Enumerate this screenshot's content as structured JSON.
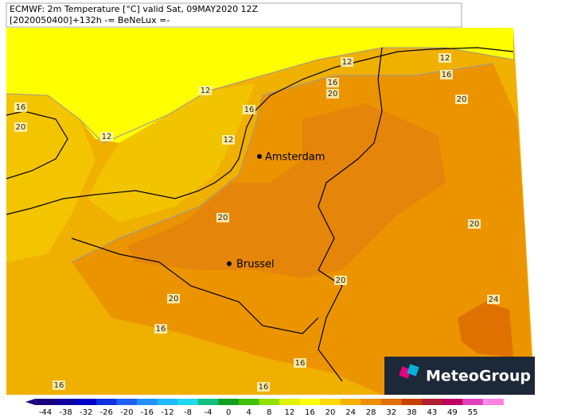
{
  "header": {
    "line1": "ECMWF: 2m Temperature [°C] valid Sat, 09MAY2020 12Z",
    "line2": "[2020050400]+132h -= BeNeLux =-"
  },
  "cities": [
    "Amsterdam",
    "Brussel"
  ],
  "contour_labels": [
    12,
    12,
    16,
    16,
    20,
    12,
    16,
    16,
    20,
    20,
    12,
    12,
    20,
    20,
    20,
    20,
    24,
    16,
    16,
    16,
    16
  ],
  "colorbar": {
    "ticks": [
      -44,
      -38,
      -32,
      -26,
      -20,
      -16,
      -12,
      -8,
      -4,
      0,
      4,
      8,
      12,
      16,
      20,
      24,
      28,
      32,
      38,
      43,
      49,
      55
    ]
  },
  "logo": "MeteoGroup"
}
